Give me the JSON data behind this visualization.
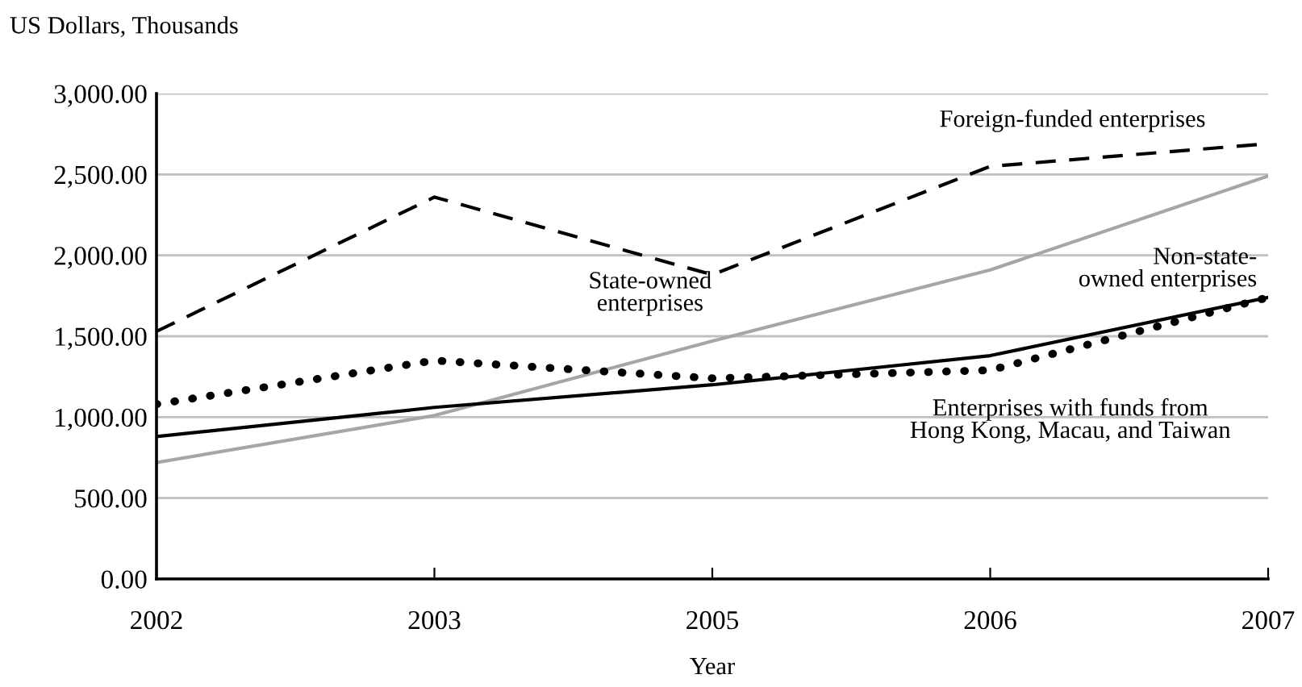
{
  "chart_data": {
    "type": "line",
    "ylabel": "US Dollars, Thousands",
    "xlabel": "Year",
    "categories": [
      "2002",
      "2003",
      "2005",
      "2006",
      "2007"
    ],
    "series": [
      {
        "color": "#000000",
        "line_style": "dashed",
        "values": [
          1530,
          2360,
          1880,
          2550,
          2690
        ]
      },
      {
        "color": "#a6a6a6",
        "line_style": "solid",
        "values": [
          720,
          1010,
          1470,
          1910,
          2490
        ]
      },
      {
        "color": "#000000",
        "line_style": "solid",
        "values": [
          880,
          1060,
          1200,
          1380,
          1740
        ]
      },
      {
        "color": "#000000",
        "line_style": "dotted",
        "values": [
          1080,
          1350,
          1240,
          1290,
          1740
        ]
      }
    ],
    "annotations": [
      "Foreign-funded enterprises",
      "State-owned\nenterprises",
      "Non-state-\nowned enterprises",
      "Enterprises with funds from\nHong Kong, Macau, and Taiwan"
    ],
    "ylim": [
      0,
      3000
    ],
    "yticks": [
      {
        "value": 0,
        "label": "0.00"
      },
      {
        "value": 500,
        "label": "500.00"
      },
      {
        "value": 1000,
        "label": "1,000.00"
      },
      {
        "value": 1500,
        "label": "1,500.00"
      },
      {
        "value": 2000,
        "label": "2,000.00"
      },
      {
        "value": 2500,
        "label": "2,500.00"
      },
      {
        "value": 3000,
        "label": "3,000.00"
      }
    ],
    "grid": "y",
    "legend": false,
    "marker": "none"
  }
}
